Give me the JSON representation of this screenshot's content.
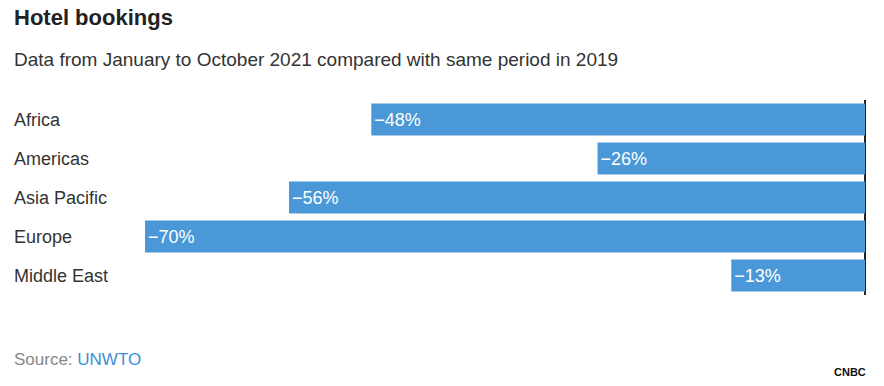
{
  "chart_data": {
    "type": "bar",
    "title": "Hotel bookings",
    "subtitle": "Data from January to October 2021 compared with same period in 2019",
    "categories": [
      "Africa",
      "Americas",
      "Asia Pacific",
      "Europe",
      "Middle East"
    ],
    "values": [
      -48,
      -26,
      -56,
      -70,
      -13
    ],
    "value_labels": [
      "−48%",
      "−26%",
      "−56%",
      "−70%",
      "−13%"
    ],
    "color": "#4a98d8",
    "orientation": "horizontal",
    "data_labels": true,
    "xlim": [
      -70,
      0
    ],
    "tick_labels": false,
    "grid": false,
    "source_label": "Source:",
    "source": "UNWTO",
    "logo": "CNBC"
  }
}
